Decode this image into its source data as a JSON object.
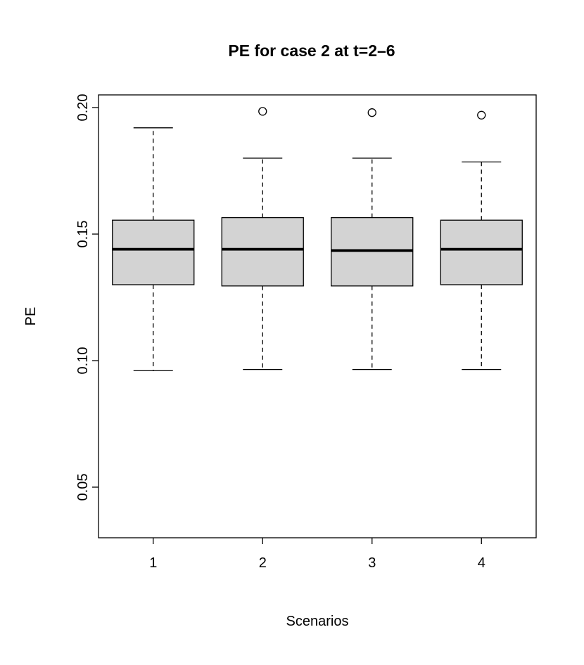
{
  "page": {
    "background": "#ffffff"
  },
  "chart_data": {
    "type": "boxplot",
    "title": "PE for case 2 at t=2–6",
    "xlabel": "Scenarios",
    "ylabel": "PE",
    "categories": [
      "1",
      "2",
      "3",
      "4"
    ],
    "ylim": [
      0.03,
      0.205
    ],
    "yticks": [
      {
        "value": 0.05,
        "label": "0.05"
      },
      {
        "value": 0.1,
        "label": "0.10"
      },
      {
        "value": 0.15,
        "label": "0.15"
      },
      {
        "value": 0.2,
        "label": "0.20"
      }
    ],
    "series": [
      {
        "category": "1",
        "whisker_low": 0.096,
        "q1": 0.13,
        "median": 0.144,
        "q3": 0.1555,
        "whisker_high": 0.192,
        "outliers": []
      },
      {
        "category": "2",
        "whisker_low": 0.0965,
        "q1": 0.1295,
        "median": 0.144,
        "q3": 0.1565,
        "whisker_high": 0.18,
        "outliers": [
          0.1985
        ]
      },
      {
        "category": "3",
        "whisker_low": 0.0965,
        "q1": 0.1295,
        "median": 0.1435,
        "q3": 0.1565,
        "whisker_high": 0.18,
        "outliers": [
          0.198
        ]
      },
      {
        "category": "4",
        "whisker_low": 0.0965,
        "q1": 0.13,
        "median": 0.144,
        "q3": 0.1555,
        "whisker_high": 0.1785,
        "outliers": [
          0.197
        ]
      }
    ],
    "styles": {
      "box_fill": "#d3d3d3",
      "stroke": "#000000",
      "median_stroke": "#000000",
      "grid": false,
      "legend": "none"
    }
  }
}
